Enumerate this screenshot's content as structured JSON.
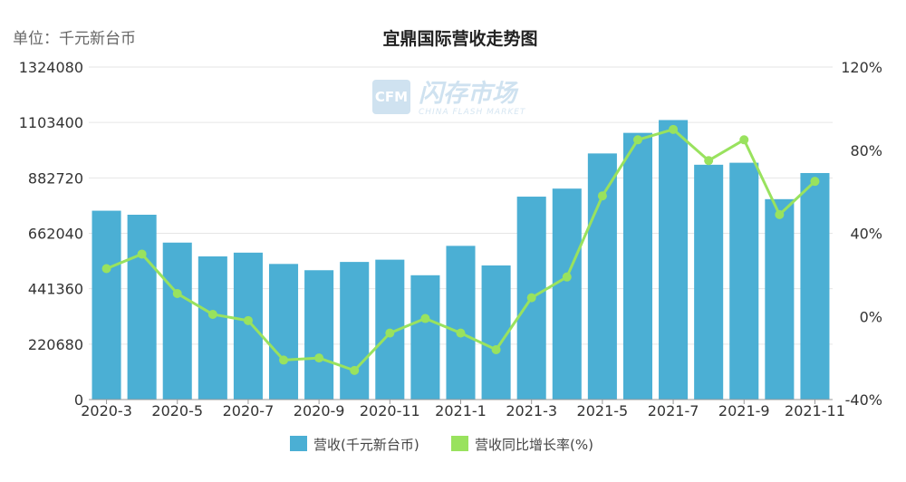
{
  "unit_label": "单位：千元新台币",
  "watermark": {
    "logo_text": "CFM",
    "cn": "闪存市场",
    "en": "CHINA FLASH MARKET"
  },
  "chart_data": {
    "type": "bar",
    "title": "宜鼎国际营收走势图",
    "categories": [
      "2020-3",
      "2020-4",
      "2020-5",
      "2020-6",
      "2020-7",
      "2020-8",
      "2020-9",
      "2020-10",
      "2020-11",
      "2020-12",
      "2021-1",
      "2021-2",
      "2021-3",
      "2021-4",
      "2021-5",
      "2021-6",
      "2021-7",
      "2021-8",
      "2021-9",
      "2021-10",
      "2021-11"
    ],
    "x_tick_labels": [
      "2020-3",
      "2020-5",
      "2020-7",
      "2020-9",
      "2020-11",
      "2021-1",
      "2021-3",
      "2021-5",
      "2021-7",
      "2021-9",
      "2021-11"
    ],
    "series": [
      {
        "name": "营收(千元新台币)",
        "type": "bar",
        "axis": "left",
        "color": "#4bafd4",
        "values": [
          752000,
          736000,
          625000,
          570000,
          585000,
          540000,
          515000,
          548000,
          557000,
          495000,
          612000,
          534000,
          808000,
          840000,
          980000,
          1062000,
          1113000,
          935000,
          943000,
          798000,
          902000
        ]
      },
      {
        "name": "营收同比增长率(%)",
        "type": "line",
        "axis": "right",
        "color": "#99e25e",
        "values": [
          23,
          30,
          11,
          1,
          -2,
          -21,
          -20,
          -26,
          -8,
          -1,
          -8,
          -16,
          9,
          19,
          58,
          85,
          90,
          75,
          85,
          49,
          65
        ]
      }
    ],
    "y_left": {
      "min": 0,
      "max": 1324080,
      "ticks": [
        0,
        220680,
        441360,
        662040,
        882720,
        1103400,
        1324080
      ]
    },
    "y_right": {
      "min": -40,
      "max": 120,
      "ticks": [
        "-40%",
        "0%",
        "40%",
        "80%",
        "120%"
      ],
      "tick_values": [
        -40,
        0,
        40,
        80,
        120
      ]
    },
    "grid": true,
    "legend_position": "bottom"
  }
}
